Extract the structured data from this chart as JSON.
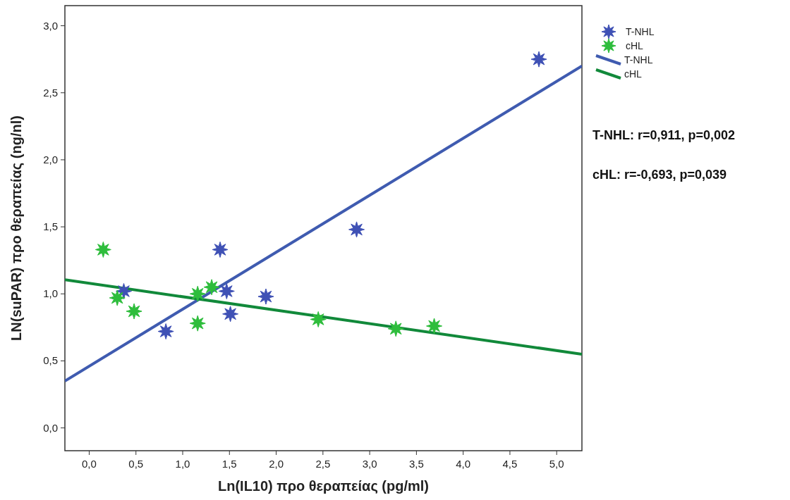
{
  "chart_data": {
    "type": "scatter",
    "xlabel": "Ln(IL10) προ θεραπείας (pg/ml)",
    "ylabel": "LN(suPAR) προ θεραπείας (ng/nl)",
    "xlim": [
      -0.26,
      5.27
    ],
    "ylim": [
      -0.17,
      3.15
    ],
    "xticks": [
      {
        "value": 0,
        "label": "0,0"
      },
      {
        "value": 0.5,
        "label": "0,5"
      },
      {
        "value": 1,
        "label": "1,0"
      },
      {
        "value": 1.5,
        "label": "1,5"
      },
      {
        "value": 2,
        "label": "2,0"
      },
      {
        "value": 2.5,
        "label": "2,5"
      },
      {
        "value": 3,
        "label": "3,0"
      },
      {
        "value": 3.5,
        "label": "3,5"
      },
      {
        "value": 4,
        "label": "4,0"
      },
      {
        "value": 4.5,
        "label": "4,5"
      },
      {
        "value": 5,
        "label": "5,0"
      }
    ],
    "yticks": [
      {
        "value": 0,
        "label": "0,0"
      },
      {
        "value": 0.5,
        "label": "0,5"
      },
      {
        "value": 1,
        "label": "1,0"
      },
      {
        "value": 1.5,
        "label": "1,5"
      },
      {
        "value": 2,
        "label": "2,0"
      },
      {
        "value": 2.5,
        "label": "2,5"
      },
      {
        "value": 3,
        "label": "3,0"
      }
    ],
    "grid": false,
    "legend": "top right",
    "series": [
      {
        "name": "T-NHL",
        "color": "#3f51b5",
        "marker": "star",
        "x": [
          0.37,
          1.4,
          1.47,
          1.51,
          1.89,
          0.82,
          2.86,
          4.81
        ],
        "values": [
          1.02,
          1.33,
          1.02,
          0.85,
          0.98,
          0.72,
          1.48,
          2.75
        ]
      },
      {
        "name": "cHL",
        "color": "#2ebd3c",
        "marker": "star",
        "x": [
          0.15,
          0.3,
          0.48,
          1.16,
          1.31,
          1.16,
          2.45,
          3.28,
          3.69
        ],
        "values": [
          1.33,
          0.97,
          0.87,
          1.0,
          1.05,
          0.78,
          0.81,
          0.74,
          0.76
        ]
      },
      {
        "name": "T-NHL",
        "type": "line",
        "marker": "none",
        "color": "#3f5bb0",
        "x": [
          -0.26,
          5.27
        ],
        "values": [
          0.35,
          2.7
        ]
      },
      {
        "name": "cHL",
        "type": "line",
        "marker": "none",
        "color": "#11893a",
        "x": [
          -0.26,
          5.27
        ],
        "values": [
          1.105,
          0.55
        ]
      }
    ],
    "annotations": [
      "T-NHL: r=0,911, p=0,002",
      "cHL: r=-0,693, p=0,039"
    ]
  }
}
